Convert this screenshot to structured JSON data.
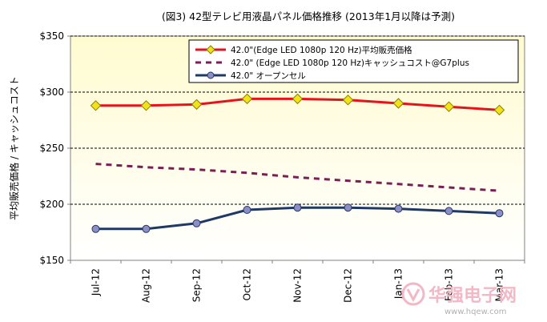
{
  "chart_data": {
    "type": "line",
    "title": "(図3) 42型テレビ用液晶パネル価格推移 (2013年1月以降は予測)",
    "xlabel": "",
    "ylabel": "平均販売価格 / キャッシュコスト",
    "ylim": [
      150,
      350
    ],
    "yticks": [
      150,
      200,
      250,
      300,
      350
    ],
    "ytick_labels": [
      "$150",
      "$200",
      "$250",
      "$300",
      "$350"
    ],
    "grid": "horizontal-dashed",
    "legend_position": "top-right",
    "categories": [
      "Jul-12",
      "Aug-12",
      "Sep-12",
      "Oct-12",
      "Nov-12",
      "Dec-12",
      "Jan-13",
      "Feb-13",
      "Mar-13"
    ],
    "series": [
      {
        "name": "42.0\"(Edge LED 1080p 120 Hz)平均販売価格",
        "values": [
          288,
          288,
          289,
          294,
          294,
          293,
          290,
          287,
          284
        ],
        "color": "#e8121d",
        "marker": "diamond",
        "marker_color": "#f2e21a",
        "line_style": "solid"
      },
      {
        "name": "42.0\" (Edge LED 1080p 120 Hz)キャッシュコスト@G7plus",
        "values": [
          236,
          233,
          231,
          228,
          224,
          221,
          218,
          215,
          212
        ],
        "color": "#7a1f55",
        "marker": "none",
        "line_style": "dashed"
      },
      {
        "name": "42.0\" オープンセル",
        "values": [
          178,
          178,
          183,
          195,
          197,
          197,
          196,
          194,
          192
        ],
        "color": "#1f3864",
        "marker": "circle",
        "marker_color": "#8e8ec6",
        "line_style": "solid"
      }
    ]
  },
  "watermark": {
    "text": "华强电子网",
    "url": "www.hqew.com",
    "color": "#f2b8c6"
  }
}
